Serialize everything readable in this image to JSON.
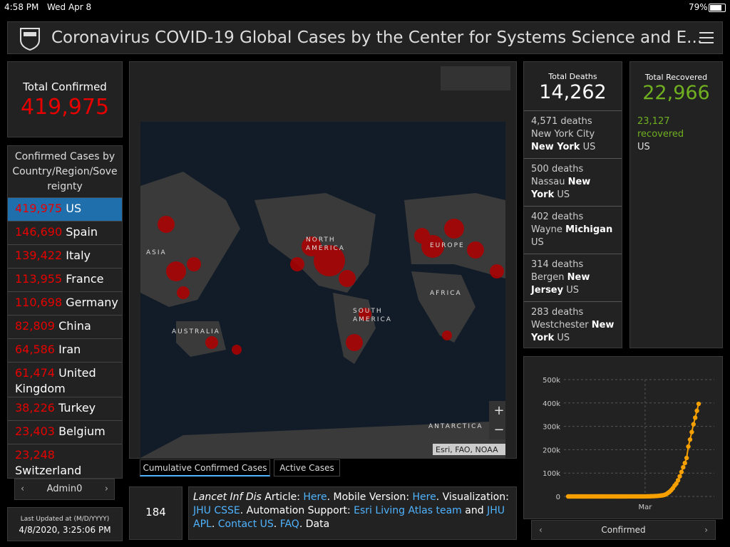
{
  "status_bar": {
    "time": "4:58 PM",
    "date": "Wed Apr 8",
    "battery": "79%"
  },
  "header": {
    "title": "Coronavirus COVID-19 Global Cases by the Center for Systems Science and E..."
  },
  "total_confirmed": {
    "label": "Total Confirmed",
    "value": "419,975"
  },
  "country_list": {
    "title": "Confirmed Cases by Country/Region/Sovereignty",
    "rows": [
      {
        "count": "419,975",
        "name": "US"
      },
      {
        "count": "146,690",
        "name": "Spain"
      },
      {
        "count": "139,422",
        "name": "Italy"
      },
      {
        "count": "113,955",
        "name": "France"
      },
      {
        "count": "110,698",
        "name": "Germany"
      },
      {
        "count": "82,809",
        "name": "China"
      },
      {
        "count": "64,586",
        "name": "Iran"
      },
      {
        "count": "61,474",
        "name": "United Kingdom"
      },
      {
        "count": "38,226",
        "name": "Turkey"
      },
      {
        "count": "23,403",
        "name": "Belgium"
      },
      {
        "count": "23,248",
        "name": "Switzerland"
      }
    ]
  },
  "list_nav": {
    "label": "Admin0"
  },
  "last_updated": {
    "label": "Last Updated at (M/D/YYYY)",
    "value": "4/8/2020, 3:25:06 PM"
  },
  "map": {
    "labels": [
      "ASIA",
      "NORTH AMERICA",
      "EUROPE",
      "AFRICA",
      "SOUTH AMERICA",
      "AUSTRALIA",
      "ANTARCTICA"
    ],
    "attribution": "Esri, FAO, NOAA"
  },
  "map_tabs": [
    "Cumulative Confirmed Cases",
    "Active Cases"
  ],
  "count_box": {
    "value": "184"
  },
  "info_text": [
    {
      "text": "Lancet Inf Dis",
      "style": "italic"
    },
    {
      "text": " Article: ",
      "style": "plain"
    },
    {
      "text": "Here",
      "style": "link"
    },
    {
      "text": ". Mobile Version: ",
      "style": "plain"
    },
    {
      "text": "Here",
      "style": "link"
    },
    {
      "text": ". Visualization: ",
      "style": "plain"
    },
    {
      "text": "JHU CSSE",
      "style": "link"
    },
    {
      "text": ". Automation Support: ",
      "style": "plain"
    },
    {
      "text": "Esri Living Atlas team",
      "style": "link"
    },
    {
      "text": " and ",
      "style": "plain"
    },
    {
      "text": "JHU APL",
      "style": "link"
    },
    {
      "text": ". ",
      "style": "plain"
    },
    {
      "text": "Contact US",
      "style": "link"
    },
    {
      "text": ". ",
      "style": "plain"
    },
    {
      "text": "FAQ",
      "style": "link"
    },
    {
      "text": ". Data",
      "style": "plain"
    }
  ],
  "total_deaths": {
    "label": "Total Deaths",
    "value": "14,262",
    "rows": [
      {
        "count": "4,571 deaths",
        "place": "New York City",
        "admin": "New York",
        "country": "US"
      },
      {
        "count": "500 deaths",
        "place": "Nassau",
        "admin": "New York",
        "country": "US"
      },
      {
        "count": "402 deaths",
        "place": "Wayne",
        "admin": "Michigan",
        "country": "US"
      },
      {
        "count": "314 deaths",
        "place": "Bergen",
        "admin": "New Jersey",
        "country": "US"
      },
      {
        "count": "283 deaths",
        "place": "Westchester",
        "admin": "New York",
        "country": "US"
      }
    ]
  },
  "total_recovered": {
    "label": "Total Recovered",
    "value": "22,966",
    "rows": [
      {
        "count": "23,127 recovered",
        "country": "US"
      }
    ]
  },
  "chart_data": {
    "type": "line",
    "color": "#f5a000",
    "grid": true,
    "nav_label": "Confirmed",
    "categories": [
      null,
      null,
      null,
      null,
      null,
      null,
      null,
      null,
      null,
      null,
      null,
      null,
      null,
      null,
      null,
      null,
      null,
      null,
      null,
      null,
      null,
      null,
      null,
      null,
      null,
      null,
      null,
      null,
      null,
      null,
      null,
      null,
      null,
      null,
      null,
      null,
      null,
      null,
      null,
      "Mar",
      null,
      null,
      null,
      null,
      null,
      null,
      null,
      null,
      null,
      null,
      null,
      null,
      null,
      null,
      null,
      null,
      null,
      null,
      null,
      null,
      null,
      null,
      null,
      null,
      null,
      null,
      null,
      null,
      null,
      null,
      null,
      null,
      null,
      null,
      null,
      null,
      null
    ],
    "values": [
      1,
      1,
      2,
      2,
      5,
      5,
      5,
      5,
      5,
      7,
      8,
      8,
      11,
      11,
      11,
      11,
      12,
      12,
      12,
      12,
      12,
      13,
      13,
      15,
      15,
      15,
      15,
      15,
      15,
      15,
      15,
      15,
      35,
      35,
      35,
      53,
      53,
      59,
      60,
      69,
      89,
      103,
      125,
      159,
      233,
      338,
      433,
      554,
      754,
      1025,
      1312,
      1663,
      2174,
      2951,
      3774,
      4661,
      6427,
      9415,
      14250,
      19624,
      26747,
      35206,
      46442,
      55231,
      69194,
      85991,
      104686,
      124665,
      143025,
      164620,
      213372,
      243453,
      275586,
      308850,
      337072,
      366667,
      396223
    ],
    "ylim": [
      0,
      500000
    ],
    "yticks": [
      0,
      {
        "value": 100000,
        "label": "100k"
      },
      {
        "value": 200000,
        "label": "200k"
      },
      {
        "value": 300000,
        "label": "300k"
      },
      {
        "value": 400000,
        "label": "400k"
      },
      {
        "value": 500000,
        "label": "500k"
      }
    ]
  }
}
